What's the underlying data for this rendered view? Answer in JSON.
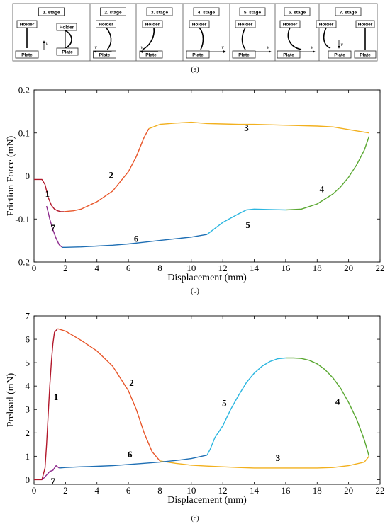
{
  "panel_a": {
    "caption": "(a)",
    "stages": [
      {
        "title": "1. stage",
        "holder": "Holder",
        "plate": "Plate",
        "v": "v"
      },
      {
        "title": "2. stage",
        "holder": "Holder",
        "plate": "Plate",
        "v": "v"
      },
      {
        "title": "3. stage",
        "holder": "Holder",
        "plate": "Plate",
        "v": "v"
      },
      {
        "title": "4. stage",
        "holder": "Holder",
        "plate": "Plate",
        "v": "v"
      },
      {
        "title": "5. stage",
        "holder": "Holder",
        "plate": "Plate",
        "v": "v"
      },
      {
        "title": "6. stage",
        "holder": "Holder",
        "plate": "Plate",
        "v": "v"
      },
      {
        "title": "7. stage",
        "holder": "Holder",
        "plate": "Plate",
        "v": "v"
      }
    ],
    "stage1_extra": {
      "holder2": "Holder",
      "plate2": "Plate"
    },
    "stage7_extra": {
      "holder2": "Holder"
    }
  },
  "chart_data": [
    {
      "type": "line",
      "caption": "(b)",
      "xlabel": "Displacement (mm)",
      "ylabel": "Friction Force (mN)",
      "xlim": [
        0,
        22
      ],
      "ylim": [
        -0.2,
        0.2
      ],
      "xticks": [
        0,
        2,
        4,
        6,
        8,
        10,
        12,
        14,
        16,
        18,
        20,
        22
      ],
      "yticks": [
        -0.2,
        -0.1,
        0,
        0.1,
        0.2
      ],
      "ytick_labels": [
        "-0.2",
        "-0.1",
        "0",
        "0.1",
        "0.2"
      ],
      "grid": false,
      "series": [
        {
          "label": "1",
          "color": "#b2182b",
          "x": [
            0,
            0.5,
            0.7,
            0.9,
            1.1,
            1.3,
            1.5,
            1.7,
            1.9
          ],
          "y": [
            -0.008,
            -0.008,
            -0.02,
            -0.05,
            -0.068,
            -0.077,
            -0.081,
            -0.083,
            -0.083
          ]
        },
        {
          "label": "2",
          "color": "#e8562a",
          "x": [
            1.9,
            2.5,
            3.0,
            4.0,
            5.0,
            6.0,
            6.5,
            7.0,
            7.3
          ],
          "y": [
            -0.083,
            -0.081,
            -0.077,
            -0.06,
            -0.035,
            0.01,
            0.045,
            0.09,
            0.11
          ]
        },
        {
          "label": "3",
          "color": "#f2b01e",
          "x": [
            7.3,
            8,
            9,
            10,
            11,
            12,
            13,
            14,
            15,
            16,
            17,
            18,
            19,
            20,
            21.3
          ],
          "y": [
            0.11,
            0.12,
            0.123,
            0.125,
            0.122,
            0.121,
            0.12,
            0.12,
            0.119,
            0.118,
            0.117,
            0.116,
            0.114,
            0.108,
            0.1
          ]
        },
        {
          "label": "4",
          "color": "#5aa832",
          "x": [
            21.3,
            21.0,
            20.5,
            20.0,
            19.5,
            19.0,
            18.0,
            17.0,
            16.0
          ],
          "y": [
            0.092,
            0.06,
            0.025,
            -0.003,
            -0.025,
            -0.042,
            -0.065,
            -0.077,
            -0.079
          ]
        },
        {
          "label": "5",
          "color": "#2bb6e0",
          "x": [
            16,
            15,
            14,
            13.5,
            13,
            12.5,
            12,
            11.5,
            11
          ],
          "y": [
            -0.079,
            -0.078,
            -0.077,
            -0.079,
            -0.088,
            -0.098,
            -0.108,
            -0.122,
            -0.136
          ]
        },
        {
          "label": "6",
          "color": "#1f6fb4",
          "x": [
            11,
            10,
            9,
            8,
            7,
            6,
            5,
            4,
            3,
            2,
            1.8
          ],
          "y": [
            -0.136,
            -0.142,
            -0.146,
            -0.15,
            -0.154,
            -0.158,
            -0.161,
            -0.163,
            -0.165,
            -0.166,
            -0.166
          ]
        },
        {
          "label": "7",
          "color": "#8e2c8e",
          "x": [
            1.8,
            1.6,
            1.4,
            1.2,
            1.0,
            0.9,
            0.8
          ],
          "y": [
            -0.166,
            -0.16,
            -0.145,
            -0.125,
            -0.1,
            -0.085,
            -0.07
          ]
        }
      ],
      "annotations": [
        {
          "text": "1",
          "x": 0.85,
          "y": -0.04
        },
        {
          "text": "2",
          "x": 4.9,
          "y": 0.003
        },
        {
          "text": "3",
          "x": 13.5,
          "y": 0.113
        },
        {
          "text": "4",
          "x": 18.3,
          "y": -0.03
        },
        {
          "text": "5",
          "x": 13.6,
          "y": -0.113
        },
        {
          "text": "6",
          "x": 6.5,
          "y": -0.145
        },
        {
          "text": "7",
          "x": 1.2,
          "y": -0.119
        }
      ]
    },
    {
      "type": "line",
      "caption": "(c)",
      "xlabel": "Displacement (mm)",
      "ylabel": "Preload (mN)",
      "xlim": [
        0,
        22
      ],
      "ylim": [
        -0.2,
        7
      ],
      "xticks": [
        0,
        2,
        4,
        6,
        8,
        10,
        12,
        14,
        16,
        18,
        20,
        22
      ],
      "yticks": [
        0,
        1,
        2,
        3,
        4,
        5,
        6,
        7
      ],
      "ytick_labels": [
        "0",
        "1",
        "2",
        "3",
        "4",
        "5",
        "6",
        "7"
      ],
      "grid": false,
      "series": [
        {
          "label": "1",
          "color": "#b2182b",
          "x": [
            0,
            0.5,
            0.7,
            0.8,
            0.9,
            1.0,
            1.1,
            1.2,
            1.3,
            1.5
          ],
          "y": [
            0,
            0,
            0.5,
            1.5,
            2.8,
            4.0,
            5.0,
            5.8,
            6.3,
            6.45
          ]
        },
        {
          "label": "2",
          "color": "#e8562a",
          "x": [
            1.5,
            2,
            3,
            4,
            5,
            6,
            6.5,
            7,
            7.5,
            8
          ],
          "y": [
            6.45,
            6.35,
            5.95,
            5.5,
            4.85,
            3.8,
            3.0,
            2.0,
            1.2,
            0.8
          ]
        },
        {
          "label": "3",
          "color": "#f2b01e",
          "x": [
            8,
            9,
            10,
            11,
            12,
            13,
            14,
            15,
            16,
            17,
            18,
            19,
            20,
            21,
            21.3
          ],
          "y": [
            0.8,
            0.7,
            0.62,
            0.58,
            0.55,
            0.52,
            0.5,
            0.5,
            0.5,
            0.5,
            0.5,
            0.52,
            0.6,
            0.75,
            1.0
          ]
        },
        {
          "label": "4",
          "color": "#5aa832",
          "x": [
            21.3,
            21,
            20.5,
            20,
            19.5,
            19,
            18.5,
            18,
            17.5,
            17,
            16.5,
            16
          ],
          "y": [
            1.0,
            1.7,
            2.6,
            3.3,
            3.9,
            4.35,
            4.7,
            4.95,
            5.1,
            5.18,
            5.2,
            5.2
          ]
        },
        {
          "label": "5",
          "color": "#2bb6e0",
          "x": [
            16,
            15.5,
            15,
            14.5,
            14,
            13.5,
            13,
            12.5,
            12,
            11.5,
            11.2,
            11
          ],
          "y": [
            5.2,
            5.17,
            5.05,
            4.85,
            4.55,
            4.15,
            3.6,
            3.0,
            2.3,
            1.8,
            1.3,
            1.05
          ]
        },
        {
          "label": "6",
          "color": "#1f6fb4",
          "x": [
            11,
            10,
            9,
            8,
            7,
            6,
            5,
            4,
            3,
            2,
            1.6
          ],
          "y": [
            1.05,
            0.9,
            0.82,
            0.75,
            0.7,
            0.65,
            0.6,
            0.57,
            0.55,
            0.52,
            0.5
          ]
        },
        {
          "label": "7",
          "color": "#8e2c8e",
          "x": [
            1.6,
            1.4,
            1.2,
            1.0,
            0.8,
            0.6,
            0.5
          ],
          "y": [
            0.5,
            0.6,
            0.4,
            0.35,
            0.2,
            0.05,
            0
          ]
        }
      ],
      "annotations": [
        {
          "text": "1",
          "x": 1.4,
          "y": 3.55
        },
        {
          "text": "2",
          "x": 6.2,
          "y": 4.15
        },
        {
          "text": "3",
          "x": 15.5,
          "y": 0.95
        },
        {
          "text": "4",
          "x": 19.3,
          "y": 3.35
        },
        {
          "text": "5",
          "x": 12.1,
          "y": 3.3
        },
        {
          "text": "6",
          "x": 6.1,
          "y": 1.1
        },
        {
          "text": "7",
          "x": 1.2,
          "y": -0.05
        }
      ]
    }
  ]
}
